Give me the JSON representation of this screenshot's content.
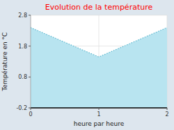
{
  "chart_data": {
    "type": "area",
    "title": "Evolution de la température",
    "x_label": "heure par heure",
    "y_label": "Température en °C",
    "x": [
      0,
      1,
      2
    ],
    "values": [
      2.4,
      1.45,
      2.4
    ],
    "color": "#b8e4f0",
    "line_style": "dotted",
    "xlim": [
      0,
      2
    ],
    "ylim": [
      -0.2,
      2.8
    ],
    "xticks": [
      0,
      1,
      2
    ],
    "yticks": [
      -0.2,
      0.8,
      1.8,
      2.8
    ],
    "grid": true
  }
}
